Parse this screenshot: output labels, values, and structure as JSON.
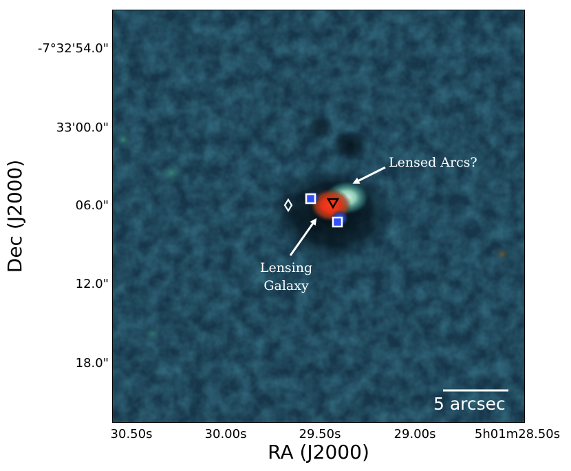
{
  "figure": {
    "x_axis_label": "RA (J2000)",
    "y_axis_label": "Dec (J2000)",
    "x_ticks": [
      "30.50s",
      "30.00s",
      "29.50s",
      "29.00s",
      "5h01m28.50s"
    ],
    "y_ticks": [
      "-7°32'54.0\"",
      "33'00.0\"",
      "06.0\"",
      "12.0\"",
      "18.0\""
    ],
    "annotations": {
      "arcs_label": "Lensed Arcs?",
      "galaxy_line1": "Lensing",
      "galaxy_line2": "Galaxy"
    },
    "scale_bar_label": "5 arcsec",
    "colors": {
      "background": "#17364a",
      "annotation_text": "#ffffff",
      "galaxy_core": "#e03418",
      "arc_glow": "#bfe3d3",
      "square_marker_fill": "#3050ff",
      "square_marker_edge": "#ffffff",
      "triangle_marker_edge": "#000000",
      "diamond_marker_edge": "#ffffff"
    },
    "markers": [
      "white-edged-blue-square",
      "white-edged-blue-square",
      "black-triangle-down",
      "white-diamond"
    ]
  }
}
